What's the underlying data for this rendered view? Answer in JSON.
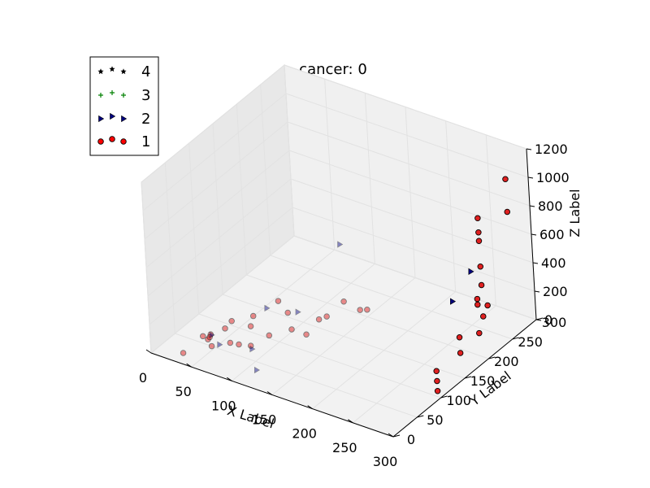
{
  "chart_data": {
    "type": "scatter",
    "projection": "3d",
    "title": "cancer: 0",
    "xlabel": "X Label",
    "ylabel": "Y Label",
    "zlabel": "Z Label",
    "xlim": [
      0,
      300
    ],
    "ylim": [
      0,
      300
    ],
    "zlim": [
      0,
      1200
    ],
    "x_ticks": [
      "0",
      "50",
      "100",
      "150",
      "200",
      "250",
      "300"
    ],
    "y_ticks": [
      "0",
      "50",
      "100",
      "150",
      "200",
      "250",
      "300"
    ],
    "z_ticks": [
      "0",
      "200",
      "400",
      "600",
      "800",
      "1000",
      "1200"
    ],
    "grid": true,
    "legend": {
      "placement": "upper-left",
      "entries": [
        {
          "label": "4",
          "marker": "star",
          "color": "#000000"
        },
        {
          "label": "3",
          "marker": "plus",
          "color": "#008000"
        },
        {
          "label": "2",
          "marker": "triangle-right",
          "color": "#000080"
        },
        {
          "label": "1",
          "marker": "circle",
          "color": "#ff0000"
        }
      ]
    },
    "series": [
      {
        "name": "1",
        "marker": "circle",
        "color": "#e02020",
        "points": [
          [
            28,
            20,
            0
          ],
          [
            35,
            60,
            0
          ],
          [
            32,
            55,
            30
          ],
          [
            40,
            58,
            50
          ],
          [
            55,
            35,
            60
          ],
          [
            66,
            55,
            50
          ],
          [
            80,
            50,
            80
          ],
          [
            95,
            50,
            100
          ],
          [
            100,
            80,
            100
          ],
          [
            110,
            110,
            80
          ],
          [
            125,
            115,
            60
          ],
          [
            120,
            150,
            60
          ],
          [
            90,
            60,
            200
          ],
          [
            70,
            40,
            200
          ],
          [
            100,
            120,
            150
          ],
          [
            95,
            110,
            250
          ],
          [
            130,
            150,
            100
          ],
          [
            150,
            200,
            50
          ],
          [
            160,
            170,
            150
          ],
          [
            50,
            40,
            100
          ],
          [
            60,
            70,
            150
          ],
          [
            75,
            90,
            160
          ],
          [
            140,
            170,
            170
          ],
          [
            290,
            110,
            0
          ],
          [
            290,
            110,
            70
          ],
          [
            290,
            110,
            140
          ],
          [
            290,
            160,
            130
          ],
          [
            290,
            160,
            240
          ],
          [
            290,
            200,
            160
          ],
          [
            290,
            210,
            250
          ],
          [
            290,
            200,
            360
          ],
          [
            290,
            220,
            300
          ],
          [
            290,
            200,
            400
          ],
          [
            290,
            210,
            470
          ],
          [
            290,
            210,
            600
          ],
          [
            290,
            210,
            780
          ],
          [
            290,
            210,
            840
          ],
          [
            290,
            210,
            940
          ],
          [
            290,
            270,
            820
          ],
          [
            290,
            270,
            1050
          ]
        ]
      },
      {
        "name": "2",
        "marker": "triangle-right",
        "color": "#000080",
        "points": [
          [
            40,
            60,
            40
          ],
          [
            65,
            35,
            90
          ],
          [
            90,
            60,
            40
          ],
          [
            110,
            35,
            0
          ],
          [
            120,
            200,
            450
          ],
          [
            100,
            140,
            100
          ],
          [
            80,
            110,
            170
          ],
          [
            290,
            150,
            520
          ],
          [
            290,
            190,
            620
          ]
        ]
      },
      {
        "name": "3",
        "marker": "plus",
        "color": "#008000",
        "points": []
      },
      {
        "name": "4",
        "marker": "star",
        "color": "#000000",
        "points": []
      }
    ]
  }
}
